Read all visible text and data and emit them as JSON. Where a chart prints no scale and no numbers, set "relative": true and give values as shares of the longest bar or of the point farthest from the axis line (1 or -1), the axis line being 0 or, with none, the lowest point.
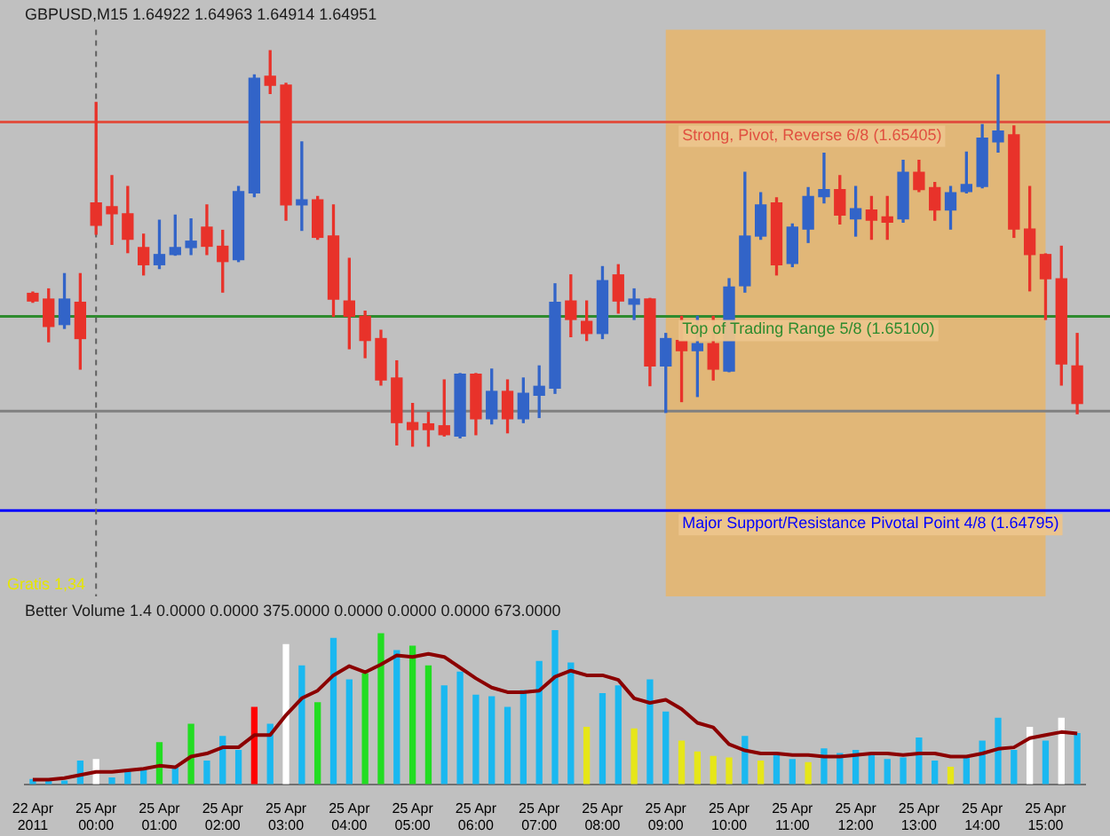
{
  "chart_data": [
    {
      "type": "candlestick",
      "title": "GBPUSD,M15 1.64922 1.64963 1.64914 1.64951",
      "categories": [
        "22 Apr 2011",
        null,
        null,
        null,
        "25 Apr 00:00",
        null,
        null,
        null,
        "25 Apr 01:00",
        null,
        null,
        null,
        "25 Apr 02:00",
        null,
        null,
        null,
        "25 Apr 03:00",
        null,
        null,
        null,
        "25 Apr 04:00",
        null,
        null,
        null,
        "25 Apr 05:00",
        null,
        null,
        null,
        "25 Apr 06:00",
        null,
        null,
        null,
        "25 Apr 07:00",
        null,
        null,
        null,
        "25 Apr 08:00",
        null,
        null,
        null,
        "25 Apr 09:00",
        null,
        null,
        null,
        "25 Apr 10:00",
        null,
        null,
        null,
        "25 Apr 11:00",
        null,
        null,
        null,
        "25 Apr 12:00",
        null,
        null,
        null,
        "25 Apr 13:00",
        null,
        null,
        null,
        "25 Apr 14:00",
        null,
        null,
        null,
        "25 Apr 15:00",
        null,
        null
      ],
      "ohlc": [
        [
          1.65136,
          1.65138,
          1.65122,
          1.65124
        ],
        [
          1.65127,
          1.65143,
          1.6506,
          1.65084
        ],
        [
          1.65087,
          1.65167,
          1.65081,
          1.65127
        ],
        [
          1.65122,
          1.65167,
          1.65017,
          1.65065
        ],
        [
          1.65278,
          1.65436,
          1.65229,
          1.65243
        ],
        [
          1.65272,
          1.65321,
          1.65213,
          1.65261
        ],
        [
          1.65261,
          1.65304,
          1.652,
          1.65221
        ],
        [
          1.65208,
          1.65229,
          1.65165,
          1.65181
        ],
        [
          1.65181,
          1.65251,
          1.65175,
          1.65197
        ],
        [
          1.65197,
          1.65259,
          1.65196,
          1.65208
        ],
        [
          1.65208,
          1.65253,
          1.65197,
          1.65218
        ],
        [
          1.6524,
          1.65275,
          1.65197,
          1.6521
        ],
        [
          1.6521,
          1.65235,
          1.65138,
          1.65186
        ],
        [
          1.65189,
          1.65304,
          1.65186,
          1.65296
        ],
        [
          1.65294,
          1.65479,
          1.65288,
          1.65474
        ],
        [
          1.65477,
          1.65517,
          1.6545,
          1.65463
        ],
        [
          1.65463,
          1.65466,
          1.65251,
          1.65275
        ],
        [
          1.65275,
          1.65374,
          1.65235,
          1.65283
        ],
        [
          1.65283,
          1.65288,
          1.65221,
          1.65224
        ],
        [
          1.65226,
          1.65275,
          1.651,
          1.65127
        ],
        [
          1.65124,
          1.65191,
          1.65049,
          1.651
        ],
        [
          1.651,
          1.65108,
          1.65035,
          1.65062
        ],
        [
          1.65065,
          1.65078,
          1.64992,
          1.65
        ],
        [
          1.65003,
          1.6503,
          1.64898,
          1.64933
        ],
        [
          1.64933,
          1.64963,
          1.64896,
          1.64922
        ],
        [
          1.64931,
          1.64949,
          1.64896,
          1.64922
        ],
        [
          1.64928,
          1.65,
          1.64912,
          1.64914
        ],
        [
          1.64912,
          1.6501,
          1.64909,
          1.65009
        ],
        [
          1.65009,
          1.6501,
          1.64914,
          1.64939
        ],
        [
          1.64939,
          1.65017,
          1.64931,
          1.64982
        ],
        [
          1.64982,
          1.65,
          1.64917,
          1.64939
        ],
        [
          1.64939,
          1.65003,
          1.64933,
          1.64979
        ],
        [
          1.64976,
          1.65022,
          1.64941,
          1.6499
        ],
        [
          1.64987,
          1.65151,
          1.64979,
          1.65122
        ],
        [
          1.65124,
          1.65165,
          1.65068,
          1.65095
        ],
        [
          1.65092,
          1.65124,
          1.65062,
          1.65073
        ],
        [
          1.65073,
          1.65178,
          1.65065,
          1.65156
        ],
        [
          1.65165,
          1.65181,
          1.65105,
          1.65124
        ],
        [
          1.65119,
          1.65143,
          1.65095,
          1.65127
        ],
        [
          1.65127,
          1.65128,
          1.64991,
          1.65022
        ],
        [
          1.65022,
          1.65073,
          1.64949,
          1.65065
        ],
        [
          1.65062,
          1.651,
          1.64966,
          1.65046
        ],
        [
          1.65046,
          1.651,
          1.64974,
          1.65057
        ],
        [
          1.65057,
          1.651,
          1.65,
          1.65017
        ],
        [
          1.65014,
          1.65159,
          1.65013,
          1.65146
        ],
        [
          1.65148,
          1.65326,
          1.65138,
          1.65226
        ],
        [
          1.65226,
          1.65294,
          1.65221,
          1.65275
        ],
        [
          1.65278,
          1.65286,
          1.65165,
          1.65181
        ],
        [
          1.65183,
          1.65245,
          1.65178,
          1.6524
        ],
        [
          1.65237,
          1.65302,
          1.65216,
          1.65288
        ],
        [
          1.65288,
          1.65356,
          1.65278,
          1.65299
        ],
        [
          1.65299,
          1.65321,
          1.65245,
          1.65259
        ],
        [
          1.65253,
          1.65304,
          1.65226,
          1.65269
        ],
        [
          1.65267,
          1.65288,
          1.65221,
          1.65251
        ],
        [
          1.65256,
          1.65288,
          1.65221,
          1.65248
        ],
        [
          1.65253,
          1.65345,
          1.65248,
          1.65326
        ],
        [
          1.65326,
          1.65345,
          1.65296,
          1.65299
        ],
        [
          1.65302,
          1.6531,
          1.65251,
          1.65267
        ],
        [
          1.65267,
          1.65304,
          1.65237,
          1.65294
        ],
        [
          1.65296,
          1.65358,
          1.65294,
          1.65307
        ],
        [
          1.65304,
          1.65401,
          1.65302,
          1.6538
        ],
        [
          1.65374,
          1.65479,
          1.65358,
          1.65391
        ],
        [
          1.65385,
          1.65399,
          1.65224,
          1.65237
        ],
        [
          1.65237,
          1.65304,
          1.6514,
          1.65197
        ],
        [
          1.65197,
          1.65198,
          1.65095,
          1.65159
        ],
        [
          1.65159,
          1.6521,
          1.64992,
          1.65025
        ],
        [
          1.65022,
          1.65073,
          1.64947,
          1.64963
        ]
      ],
      "colors": [
        "#e8322a",
        "#e8322a",
        "#3264c8",
        "#e8322a",
        "#e8322a",
        "#e8322a",
        "#e8322a",
        "#e8322a",
        "#3264c8",
        "#3264c8",
        "#3264c8",
        "#e8322a",
        "#e8322a",
        "#3264c8",
        "#3264c8",
        "#e8322a",
        "#e8322a",
        "#3264c8",
        "#e8322a",
        "#e8322a",
        "#e8322a",
        "#e8322a",
        "#e8322a",
        "#e8322a",
        "#e8322a",
        "#e8322a",
        "#e8322a",
        "#3264c8",
        "#e8322a",
        "#3264c8",
        "#e8322a",
        "#3264c8",
        "#3264c8",
        "#3264c8",
        "#e8322a",
        "#e8322a",
        "#3264c8",
        "#e8322a",
        "#3264c8",
        "#e8322a",
        "#3264c8",
        "#e8322a",
        "#3264c8",
        "#e8322a",
        "#3264c8",
        "#3264c8",
        "#3264c8",
        "#e8322a",
        "#3264c8",
        "#3264c8",
        "#3264c8",
        "#e8322a",
        "#3264c8",
        "#e8322a",
        "#e8322a",
        "#3264c8",
        "#e8322a",
        "#e8322a",
        "#3264c8",
        "#3264c8",
        "#3264c8",
        "#3264c8",
        "#e8322a",
        "#e8322a",
        "#e8322a",
        "#e8322a",
        "#e8322a"
      ],
      "ylim": [
        1.6466,
        1.6555
      ],
      "ref_lines": [
        {
          "axis": "y",
          "value": 1.65405,
          "label": "Strong, Pivot, Reverse 6/8 (1.65405)",
          "color": "#e05040"
        },
        {
          "axis": "y",
          "value": 1.651,
          "label": "Top of Trading Range 5/8 (1.65100)",
          "color": "#2e8b2e"
        },
        {
          "axis": "y",
          "value": 1.64795,
          "label": "Major Support/Resistance Pivotal Point 4/8 (1.64795)",
          "color": "#0000ff"
        },
        {
          "axis": "y",
          "value": 1.64951,
          "color": "#808080"
        },
        {
          "axis": "x",
          "value": "25 Apr 00:00",
          "color": "#606060",
          "line_style": "dashed"
        }
      ],
      "bands": [
        {
          "axis": "x",
          "from": "25 Apr 09:00",
          "to": "25 Apr 15:00",
          "color": "#f0b45a"
        }
      ],
      "annotations": [
        "Gratis 1,34"
      ],
      "tick_labels": false
    },
    {
      "type": "bar",
      "title": "Better Volume 1.4 0.0000 0.0000 375.0000 0.0000 0.0000 0.0000 673.0000",
      "categories": [
        "22 Apr 2011",
        null,
        null,
        null,
        "25 Apr 00:00",
        null,
        null,
        null,
        "25 Apr 01:00",
        null,
        null,
        null,
        "25 Apr 02:00",
        null,
        null,
        null,
        "25 Apr 03:00",
        null,
        null,
        null,
        "25 Apr 04:00",
        null,
        null,
        null,
        "25 Apr 05:00",
        null,
        null,
        null,
        "25 Apr 06:00",
        null,
        null,
        null,
        "25 Apr 07:00",
        null,
        null,
        null,
        "25 Apr 08:00",
        null,
        null,
        null,
        "25 Apr 09:00",
        null,
        null,
        null,
        "25 Apr 10:00",
        null,
        null,
        null,
        "25 Apr 11:00",
        null,
        null,
        null,
        "25 Apr 12:00",
        null,
        null,
        null,
        "25 Apr 13:00",
        null,
        null,
        null,
        "25 Apr 14:00",
        null,
        null,
        null,
        "25 Apr 15:00",
        null,
        null
      ],
      "relative": true,
      "series": [
        {
          "type": "bar",
          "values": [
            0.03,
            0.02,
            0.02,
            0.15,
            0.16,
            0.04,
            0.08,
            0.1,
            0.27,
            0.11,
            0.39,
            0.15,
            0.31,
            0.22,
            0.5,
            0.39,
            0.91,
            0.77,
            0.53,
            0.95,
            0.68,
            0.72,
            0.98,
            0.87,
            0.9,
            0.77,
            0.64,
            0.73,
            0.58,
            0.57,
            0.5,
            0.61,
            0.8,
            1,
            0.79,
            0.37,
            0.59,
            0.64,
            0.36,
            0.68,
            0.47,
            0.28,
            0.21,
            0.18,
            0.17,
            0.31,
            0.15,
            0.19,
            0.16,
            0.14,
            0.23,
            0.2,
            0.22,
            0.19,
            0.16,
            0.17,
            0.3,
            0.15,
            0.11,
            0.17,
            0.28,
            0.43,
            0.22,
            0.37,
            0.28,
            0.43,
            0.33
          ],
          "colors": [
            "#1ab8f0",
            "#1ab8f0",
            "#1ab8f0",
            "#1ab8f0",
            "#ffffff",
            "#1ab8f0",
            "#1ab8f0",
            "#1ab8f0",
            "#22dd22",
            "#1ab8f0",
            "#22dd22",
            "#1ab8f0",
            "#1ab8f0",
            "#1ab8f0",
            "#ff0000",
            "#1ab8f0",
            "#ffffff",
            "#1ab8f0",
            "#22dd22",
            "#1ab8f0",
            "#1ab8f0",
            "#22dd22",
            "#22dd22",
            "#1ab8f0",
            "#22dd22",
            "#22dd22",
            "#1ab8f0",
            "#1ab8f0",
            "#1ab8f0",
            "#1ab8f0",
            "#1ab8f0",
            "#1ab8f0",
            "#1ab8f0",
            "#1ab8f0",
            "#1ab8f0",
            "#e6e619",
            "#1ab8f0",
            "#1ab8f0",
            "#e6e619",
            "#1ab8f0",
            "#1ab8f0",
            "#e6e619",
            "#e6e619",
            "#e6e619",
            "#e6e619",
            "#1ab8f0",
            "#e6e619",
            "#1ab8f0",
            "#1ab8f0",
            "#e6e619",
            "#1ab8f0",
            "#1ab8f0",
            "#1ab8f0",
            "#1ab8f0",
            "#1ab8f0",
            "#1ab8f0",
            "#1ab8f0",
            "#1ab8f0",
            "#e6e619",
            "#1ab8f0",
            "#1ab8f0",
            "#1ab8f0",
            "#1ab8f0",
            "#ffffff",
            "#1ab8f0",
            "#ffffff",
            "#1ab8f0"
          ]
        },
        {
          "type": "line",
          "color": "#8b0000",
          "values": [
            0.03,
            0.03,
            0.04,
            0.06,
            0.08,
            0.08,
            0.09,
            0.1,
            0.12,
            0.11,
            0.18,
            0.2,
            0.24,
            0.24,
            0.32,
            0.32,
            0.45,
            0.56,
            0.61,
            0.71,
            0.77,
            0.73,
            0.78,
            0.84,
            0.83,
            0.85,
            0.83,
            0.76,
            0.69,
            0.63,
            0.6,
            0.6,
            0.61,
            0.7,
            0.74,
            0.71,
            0.71,
            0.68,
            0.56,
            0.53,
            0.55,
            0.49,
            0.4,
            0.37,
            0.26,
            0.22,
            0.2,
            0.2,
            0.19,
            0.19,
            0.18,
            0.18,
            0.19,
            0.2,
            0.2,
            0.19,
            0.2,
            0.2,
            0.18,
            0.18,
            0.2,
            0.23,
            0.24,
            0.3,
            0.32,
            0.34,
            0.33
          ]
        }
      ],
      "tick_labels": "x"
    }
  ]
}
